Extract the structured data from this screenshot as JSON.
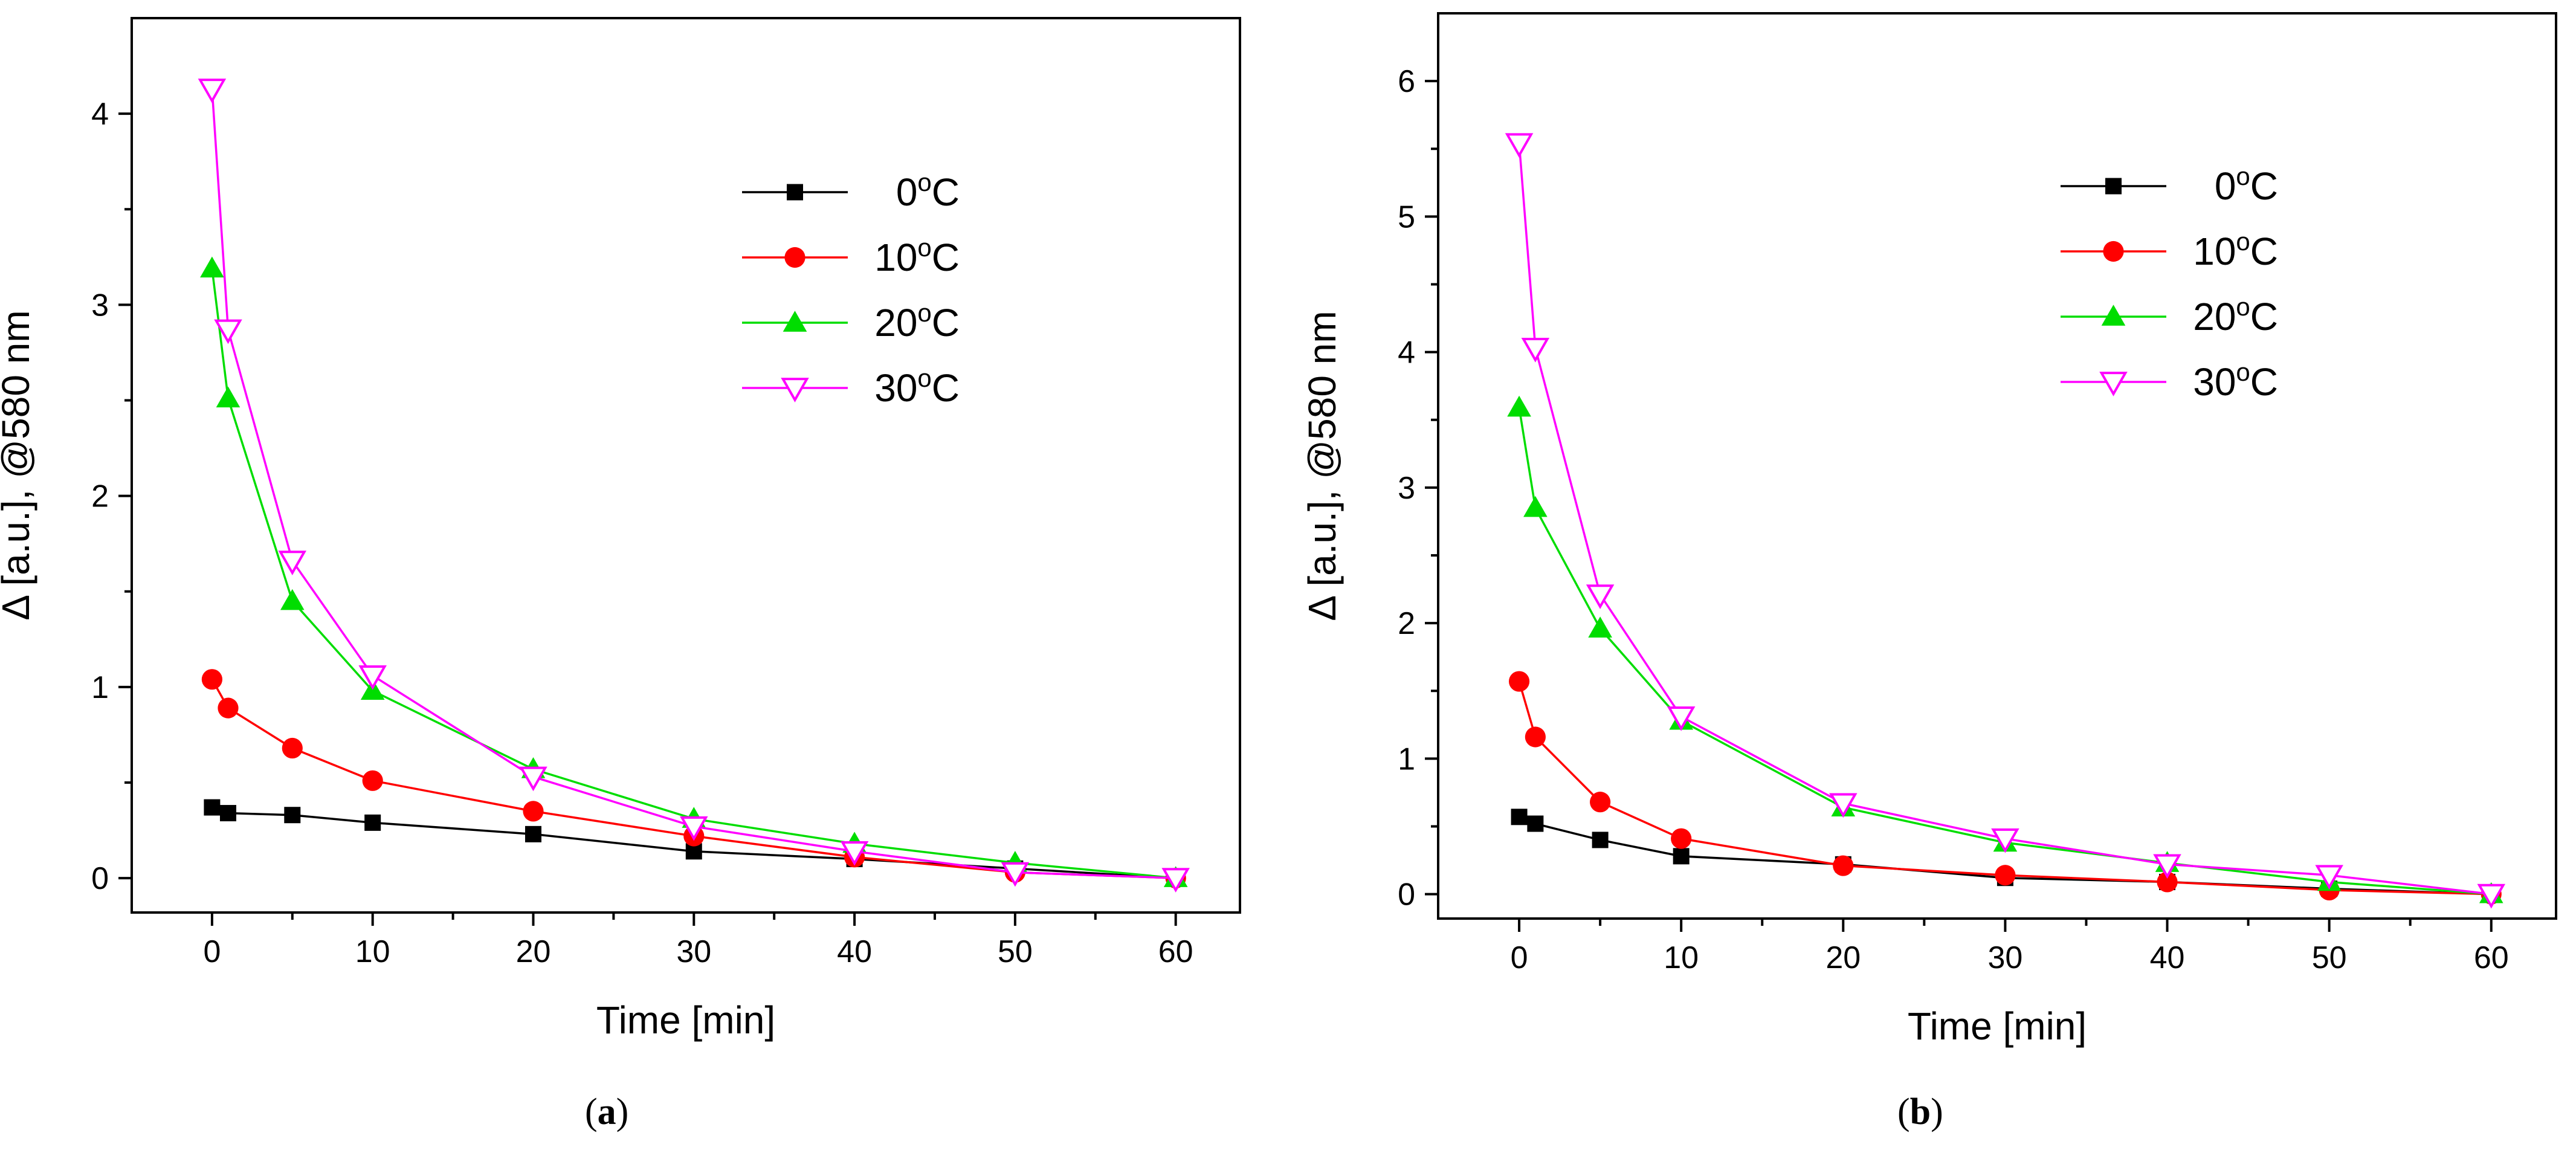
{
  "chart_data": [
    {
      "type": "line",
      "panel_label": "a",
      "title": "",
      "xlabel": "Time [min]",
      "ylabel": "Δ [a.u.], @580 nm",
      "xlim": [
        -5,
        64
      ],
      "ylim": [
        -0.18,
        4.5
      ],
      "xticks": [
        0,
        10,
        20,
        30,
        40,
        50,
        60
      ],
      "yticks": [
        0,
        1,
        2,
        3,
        4
      ],
      "legend_position": "top-right",
      "grid": false,
      "x": [
        0,
        1,
        5,
        10,
        20,
        30,
        40,
        50,
        60
      ],
      "series": [
        {
          "name": "0",
          "unit_sup": "o",
          "unit": "C",
          "color": "#000000",
          "marker": "square",
          "values": [
            0.37,
            0.34,
            0.33,
            0.29,
            0.23,
            0.14,
            0.1,
            0.05,
            0.0
          ]
        },
        {
          "name": "10",
          "unit_sup": "o",
          "unit": "C",
          "color": "#ff0000",
          "marker": "circle",
          "values": [
            1.04,
            0.89,
            0.68,
            0.51,
            0.35,
            0.22,
            0.11,
            0.03,
            0.0
          ]
        },
        {
          "name": "20",
          "unit_sup": "o",
          "unit": "C",
          "color": "#00dd00",
          "marker": "triangle-up",
          "values": [
            3.19,
            2.51,
            1.45,
            0.98,
            0.57,
            0.31,
            0.18,
            0.08,
            0.0
          ]
        },
        {
          "name": "30",
          "unit_sup": "o",
          "unit": "C",
          "color": "#ff00ff",
          "marker": "triangle-down-open",
          "values": [
            4.13,
            2.87,
            1.66,
            1.06,
            0.53,
            0.27,
            0.14,
            0.03,
            0.0
          ]
        }
      ]
    },
    {
      "type": "line",
      "panel_label": "b",
      "title": "",
      "xlabel": "Time [min]",
      "ylabel": "Δ [a.u.], @580 nm",
      "xlim": [
        -5,
        64
      ],
      "ylim": [
        -0.18,
        6.5
      ],
      "xticks": [
        0,
        10,
        20,
        30,
        40,
        50,
        60
      ],
      "yticks": [
        0,
        1,
        2,
        3,
        4,
        5,
        6
      ],
      "legend_position": "top-right",
      "grid": false,
      "x": [
        0,
        1,
        5,
        10,
        20,
        30,
        40,
        50,
        60
      ],
      "series": [
        {
          "name": "0",
          "unit_sup": "o",
          "unit": "C",
          "color": "#000000",
          "marker": "square",
          "values": [
            0.57,
            0.52,
            0.4,
            0.28,
            0.22,
            0.12,
            0.09,
            0.04,
            0.0
          ]
        },
        {
          "name": "10",
          "unit_sup": "o",
          "unit": "C",
          "color": "#ff0000",
          "marker": "circle",
          "values": [
            1.57,
            1.16,
            0.68,
            0.41,
            0.21,
            0.14,
            0.09,
            0.03,
            0.0
          ]
        },
        {
          "name": "20",
          "unit_sup": "o",
          "unit": "C",
          "color": "#00dd00",
          "marker": "triangle-up",
          "values": [
            3.59,
            2.85,
            1.96,
            1.28,
            0.64,
            0.38,
            0.23,
            0.09,
            0.0
          ]
        },
        {
          "name": "30",
          "unit_sup": "o",
          "unit": "C",
          "color": "#ff00ff",
          "marker": "triangle-down-open",
          "values": [
            5.54,
            4.03,
            2.21,
            1.31,
            0.67,
            0.41,
            0.22,
            0.14,
            0.0
          ]
        }
      ]
    }
  ]
}
